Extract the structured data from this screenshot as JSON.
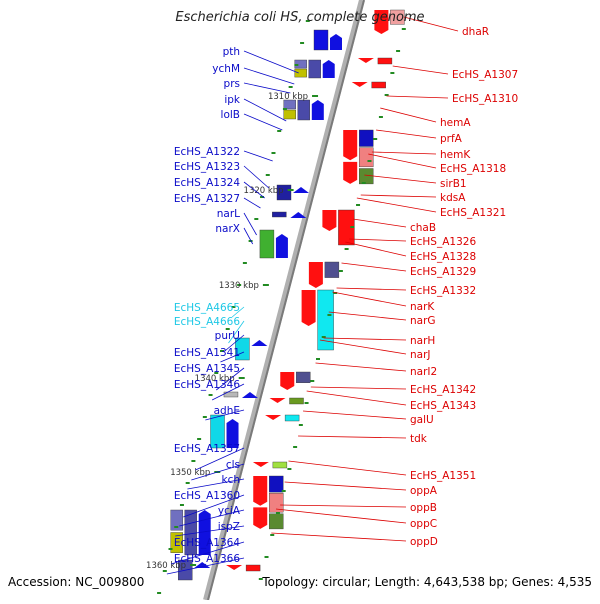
{
  "title": "Escherichia coli HS, complete genome",
  "footer": {
    "accession": "Accession: NC_009800",
    "summary": "Topology: circular; Length: 4,643,538 bp; Genes: 4,535"
  },
  "colors": {
    "left_label": "#0a0ac8",
    "left_label_cyan": "#1ec8e6",
    "right_label": "#dc0000",
    "backbone": "#808080",
    "tick": "#228b22"
  },
  "scale": {
    "unit": "kbp",
    "ticks": [
      {
        "text": "1310 kbp"
      },
      {
        "text": "1320 kbp"
      },
      {
        "text": "1330 kbp"
      },
      {
        "text": "1340 kbp"
      },
      {
        "text": "1350 kbp"
      },
      {
        "text": "1360 kbp"
      }
    ]
  },
  "left_genes": [
    {
      "label": "pth",
      "color": "blue"
    },
    {
      "label": "ychM",
      "color": "blue"
    },
    {
      "label": "prs",
      "color": "blue"
    },
    {
      "label": "ipk",
      "color": "blue"
    },
    {
      "label": "lolB",
      "color": "blue"
    },
    {
      "label": "EcHS_A1322",
      "color": "blue"
    },
    {
      "label": "EcHS_A1323",
      "color": "blue"
    },
    {
      "label": "EcHS_A1324",
      "color": "blue"
    },
    {
      "label": "EcHS_A1327",
      "color": "blue"
    },
    {
      "label": "narL",
      "color": "blue"
    },
    {
      "label": "narX",
      "color": "blue"
    },
    {
      "label": "EcHS_A4665",
      "color": "cyan"
    },
    {
      "label": "EcHS_A4666",
      "color": "cyan"
    },
    {
      "label": "purU",
      "color": "blue"
    },
    {
      "label": "EcHS_A1341",
      "color": "blue"
    },
    {
      "label": "EcHS_A1345",
      "color": "blue"
    },
    {
      "label": "EcHS_A1346",
      "color": "blue"
    },
    {
      "label": "adhE",
      "color": "blue"
    },
    {
      "label": "EcHS_A1357",
      "color": "blue"
    },
    {
      "label": "cls",
      "color": "blue"
    },
    {
      "label": "kch",
      "color": "blue"
    },
    {
      "label": "EcHS_A1360",
      "color": "blue"
    },
    {
      "label": "yciA",
      "color": "blue"
    },
    {
      "label": "ispZ",
      "color": "blue"
    },
    {
      "label": "EcHS_A1364",
      "color": "blue"
    },
    {
      "label": "EcHS_A1366",
      "color": "blue"
    }
  ],
  "right_genes": [
    {
      "label": "dhaR"
    },
    {
      "label": "EcHS_A1307"
    },
    {
      "label": "EcHS_A1310"
    },
    {
      "label": "hemA"
    },
    {
      "label": "prfA"
    },
    {
      "label": "hemK"
    },
    {
      "label": "EcHS_A1318"
    },
    {
      "label": "sirB1"
    },
    {
      "label": "kdsA"
    },
    {
      "label": "EcHS_A1321"
    },
    {
      "label": "chaB"
    },
    {
      "label": "EcHS_A1326"
    },
    {
      "label": "EcHS_A1328"
    },
    {
      "label": "EcHS_A1329"
    },
    {
      "label": "EcHS_A1332"
    },
    {
      "label": "narK"
    },
    {
      "label": "narG"
    },
    {
      "label": "narH"
    },
    {
      "label": "narJ"
    },
    {
      "label": "narI2"
    },
    {
      "label": "EcHS_A1342"
    },
    {
      "label": "EcHS_A1343"
    },
    {
      "label": "galU"
    },
    {
      "label": "tdk"
    },
    {
      "label": "EcHS_A1351"
    },
    {
      "label": "oppA"
    },
    {
      "label": "oppB"
    },
    {
      "label": "oppC"
    },
    {
      "label": "oppD"
    }
  ]
}
